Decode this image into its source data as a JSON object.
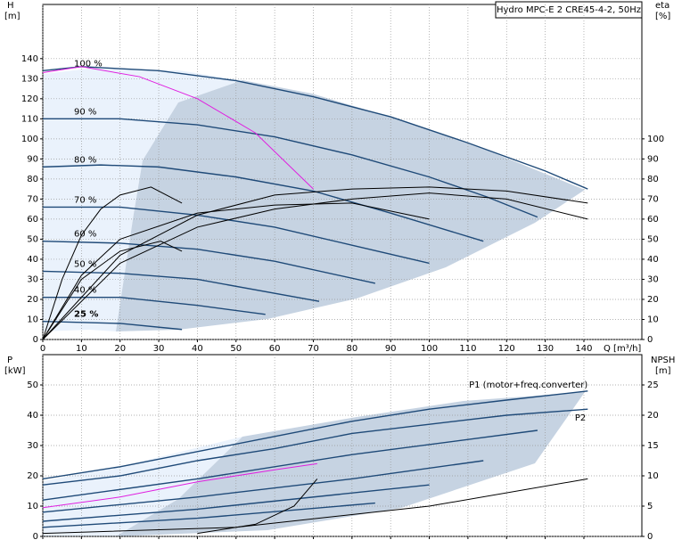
{
  "chart_data": [
    {
      "type": "line",
      "title": "Hydro MPC-E 2 CRE45-4-2, 50Hz",
      "ylabel": "H",
      "yunit": "[m]",
      "y2label": "eta",
      "y2unit": "[%]",
      "xlabel": "Q [m³/h]",
      "xlim": [
        0,
        155
      ],
      "xticks": [
        0,
        10,
        20,
        30,
        40,
        50,
        60,
        70,
        80,
        90,
        100,
        110,
        120,
        130,
        140
      ],
      "ylim": [
        0,
        167
      ],
      "yticks": [
        0,
        10,
        20,
        30,
        40,
        50,
        60,
        70,
        80,
        90,
        100,
        110,
        120,
        130,
        140
      ],
      "y2lim": [
        0,
        167
      ],
      "y2ticks": [
        0,
        10,
        20,
        30,
        40,
        50,
        60,
        70,
        80,
        90,
        100
      ],
      "grid": true,
      "series": [
        {
          "name": "100 %",
          "color": "#1f4a78",
          "x": [
            0,
            10,
            30,
            50,
            70,
            90,
            110,
            130,
            141
          ],
          "values": [
            134,
            136,
            134,
            129,
            121,
            111,
            98,
            84,
            75
          ]
        },
        {
          "name": "90 %",
          "color": "#1f4a78",
          "x": [
            0,
            20,
            40,
            60,
            80,
            100,
            115,
            128
          ],
          "values": [
            110,
            110,
            107,
            101,
            92,
            81,
            71,
            61
          ]
        },
        {
          "name": "80 %",
          "color": "#1f4a78",
          "x": [
            0,
            15,
            30,
            50,
            70,
            90,
            114
          ],
          "values": [
            86,
            87,
            86,
            81,
            74,
            63,
            49
          ]
        },
        {
          "name": "70 %",
          "color": "#1f4a78",
          "x": [
            0,
            20,
            40,
            60,
            80,
            100
          ],
          "values": [
            66,
            66,
            62,
            56,
            47,
            38
          ]
        },
        {
          "name": "60 %",
          "color": "#1f4a78",
          "x": [
            0,
            20,
            40,
            60,
            86
          ],
          "values": [
            49,
            48,
            45,
            39,
            28
          ]
        },
        {
          "name": "50 %",
          "color": "#1f4a78",
          "x": [
            0,
            20,
            40,
            71.5
          ],
          "values": [
            34,
            33,
            30,
            19
          ]
        },
        {
          "name": "40 %",
          "color": "#1f4a78",
          "x": [
            0,
            20,
            40,
            57.6
          ],
          "values": [
            21,
            21,
            17,
            12.5
          ]
        },
        {
          "name": "25 %",
          "color": "#1f4a78",
          "x": [
            0,
            20,
            36
          ],
          "values": [
            9,
            8,
            5
          ]
        },
        {
          "color": "#e020e0",
          "x": [
            0,
            10,
            25,
            40,
            55,
            70
          ],
          "values": [
            133,
            136,
            131,
            120,
            103,
            75
          ]
        },
        {
          "color": "#000000",
          "axis": "y2",
          "x": [
            0,
            5,
            10,
            15,
            20,
            28,
            36
          ],
          "values": [
            0,
            30,
            52,
            65,
            72,
            76,
            68
          ]
        },
        {
          "color": "#000000",
          "axis": "y2",
          "x": [
            0,
            10,
            20,
            30.5,
            36
          ],
          "values": [
            0,
            30,
            44,
            49,
            44
          ]
        },
        {
          "color": "#000000",
          "axis": "y2",
          "x": [
            0,
            10,
            20,
            40,
            60,
            80,
            100
          ],
          "values": [
            0,
            32,
            50,
            63,
            67,
            68,
            60
          ]
        },
        {
          "color": "#000000",
          "axis": "y2",
          "x": [
            0,
            20,
            40,
            60,
            80,
            100,
            120,
            141
          ],
          "values": [
            0,
            38,
            56,
            65,
            70,
            73,
            70,
            60
          ]
        },
        {
          "color": "#000000",
          "axis": "y2",
          "x": [
            0,
            20,
            40,
            60,
            80,
            100,
            120,
            141
          ],
          "values": [
            0,
            42,
            62,
            72,
            75,
            76,
            74,
            68
          ]
        }
      ]
    },
    {
      "type": "line",
      "ylabel": "P",
      "yunit": "[kW]",
      "y2label": "NPSH",
      "y2unit": "[m]",
      "xlim": [
        0,
        155
      ],
      "xticks": [
        0,
        10,
        20,
        30,
        40,
        50,
        60,
        70,
        80,
        90,
        100,
        110,
        120,
        130,
        140
      ],
      "ylim": [
        0,
        60
      ],
      "yticks": [
        0,
        10,
        20,
        30,
        40,
        50
      ],
      "y2lim": [
        0,
        30
      ],
      "y2ticks": [
        0,
        5,
        10,
        15,
        20,
        25
      ],
      "grid": true,
      "series": [
        {
          "name": "P1 (motor+freq.converter)",
          "color": "#1f4a78",
          "x": [
            0,
            20,
            40,
            60,
            80,
            100,
            120,
            141
          ],
          "values": [
            19,
            23,
            28,
            33,
            38,
            42,
            45,
            48
          ]
        },
        {
          "name": "P2",
          "color": "#1f4a78",
          "x": [
            0,
            20,
            40,
            60,
            80,
            100,
            120,
            141
          ],
          "values": [
            17,
            20,
            25,
            29,
            34,
            37,
            40,
            42
          ]
        },
        {
          "color": "#1f4a78",
          "x": [
            0,
            40,
            80,
            128
          ],
          "values": [
            12,
            19,
            27,
            35
          ]
        },
        {
          "color": "#1f4a78",
          "x": [
            0,
            40,
            80,
            114
          ],
          "values": [
            8,
            13,
            19,
            25
          ]
        },
        {
          "color": "#1f4a78",
          "x": [
            0,
            40,
            100
          ],
          "values": [
            5,
            9,
            17
          ]
        },
        {
          "color": "#1f4a78",
          "x": [
            0,
            40,
            86
          ],
          "values": [
            3,
            6,
            11
          ]
        },
        {
          "color": "#e020e0",
          "x": [
            0,
            20,
            40,
            60,
            71
          ],
          "values": [
            9.5,
            13,
            18,
            22,
            24
          ]
        },
        {
          "color": "#000000",
          "axis": "y2",
          "x": [
            40,
            55,
            65,
            71
          ],
          "values": [
            0.5,
            2,
            5,
            9.5
          ]
        },
        {
          "color": "#000000",
          "axis": "y2",
          "x": [
            0,
            50,
            100,
            141
          ],
          "values": [
            0.5,
            1.5,
            5,
            9.5
          ]
        }
      ]
    }
  ]
}
